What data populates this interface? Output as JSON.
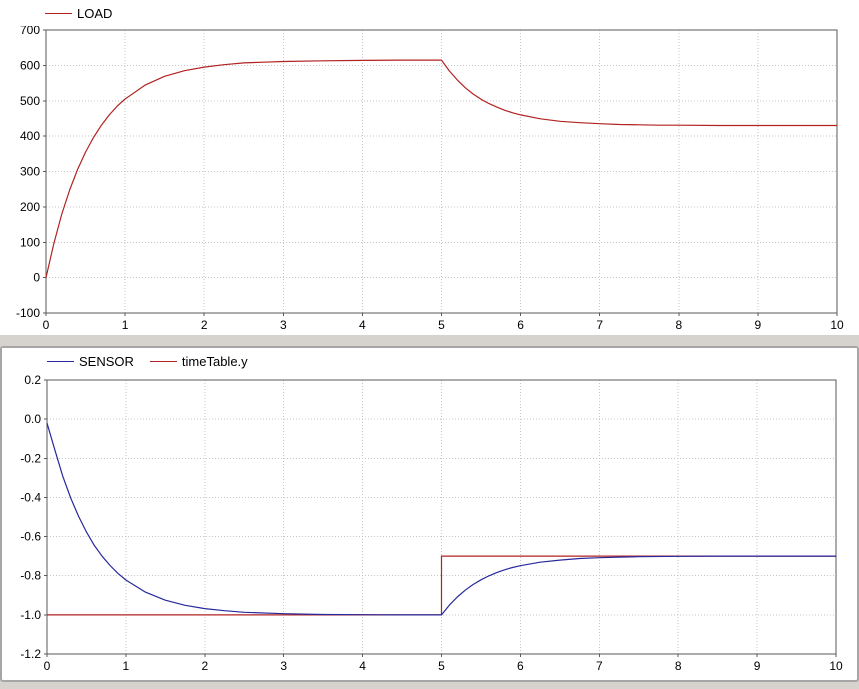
{
  "chart_data": [
    {
      "type": "line",
      "title": "",
      "xlabel": "",
      "ylabel": "",
      "xlim": [
        0,
        10
      ],
      "ylim": [
        -100,
        700
      ],
      "xticks": [
        "0",
        "1",
        "2",
        "3",
        "4",
        "5",
        "6",
        "7",
        "8",
        "9",
        "10"
      ],
      "yticks": [
        "-100",
        "0",
        "100",
        "200",
        "300",
        "400",
        "500",
        "600",
        "700"
      ],
      "grid": "dotted",
      "legend_position": "top-left",
      "legend": [
        {
          "label": "LOAD",
          "color": "#b22222"
        }
      ],
      "series": [
        {
          "name": "LOAD",
          "color": "#b22222",
          "points": [
            [
              0,
              0
            ],
            [
              0.1,
              97
            ],
            [
              0.2,
              180
            ],
            [
              0.3,
              248
            ],
            [
              0.4,
              306
            ],
            [
              0.5,
              355
            ],
            [
              0.6,
              396
            ],
            [
              0.7,
              431
            ],
            [
              0.8,
              460
            ],
            [
              0.9,
              485
            ],
            [
              1,
              505
            ],
            [
              1.25,
              544
            ],
            [
              1.5,
              569
            ],
            [
              1.75,
              585
            ],
            [
              2,
              595
            ],
            [
              2.25,
              602
            ],
            [
              2.5,
              607
            ],
            [
              2.75,
              609
            ],
            [
              3,
              611
            ],
            [
              3.5,
              613
            ],
            [
              4,
              614
            ],
            [
              4.5,
              615
            ],
            [
              5,
              615
            ],
            [
              5.1,
              584
            ],
            [
              5.2,
              559
            ],
            [
              5.3,
              537
            ],
            [
              5.4,
              519
            ],
            [
              5.5,
              504
            ],
            [
              5.6,
              492
            ],
            [
              5.7,
              482
            ],
            [
              5.8,
              473
            ],
            [
              5.9,
              466
            ],
            [
              6,
              460
            ],
            [
              6.25,
              449
            ],
            [
              6.5,
              442
            ],
            [
              6.75,
              438
            ],
            [
              7,
              435
            ],
            [
              7.25,
              433
            ],
            [
              7.5,
              432
            ],
            [
              7.75,
              431
            ],
            [
              8,
              431
            ],
            [
              8.5,
              430
            ],
            [
              9,
              430
            ],
            [
              9.5,
              430
            ],
            [
              10,
              430
            ]
          ]
        }
      ]
    },
    {
      "type": "line",
      "title": "",
      "xlabel": "",
      "ylabel": "",
      "xlim": [
        0,
        10
      ],
      "ylim": [
        -1.2,
        0.2
      ],
      "xticks": [
        "0",
        "1",
        "2",
        "3",
        "4",
        "5",
        "6",
        "7",
        "8",
        "9",
        "10"
      ],
      "yticks": [
        "-1.2",
        "-1.0",
        "-0.8",
        "-0.6",
        "-0.4",
        "-0.2",
        "0.0",
        "0.2"
      ],
      "grid": "dotted",
      "legend_position": "top-left",
      "legend": [
        {
          "label": "SENSOR",
          "color": "#28289c"
        },
        {
          "label": "timeTable.y",
          "color": "#b22222"
        }
      ],
      "series": [
        {
          "name": "timeTable.y",
          "color": "#b22222",
          "points": [
            [
              0,
              -1
            ],
            [
              5,
              -1
            ],
            [
              5,
              -0.7
            ],
            [
              10,
              -0.7
            ]
          ]
        },
        {
          "name": "SENSOR",
          "color": "#28289c",
          "points": [
            [
              0,
              -0.02
            ],
            [
              0.1,
              -0.158
            ],
            [
              0.2,
              -0.292
            ],
            [
              0.3,
              -0.403
            ],
            [
              0.4,
              -0.497
            ],
            [
              0.5,
              -0.577
            ],
            [
              0.6,
              -0.645
            ],
            [
              0.7,
              -0.701
            ],
            [
              0.8,
              -0.748
            ],
            [
              0.9,
              -0.788
            ],
            [
              1,
              -0.822
            ],
            [
              1.25,
              -0.884
            ],
            [
              1.5,
              -0.925
            ],
            [
              1.75,
              -0.951
            ],
            [
              2,
              -0.968
            ],
            [
              2.25,
              -0.979
            ],
            [
              2.5,
              -0.987
            ],
            [
              3,
              -0.994
            ],
            [
              3.5,
              -0.998
            ],
            [
              4,
              -0.999
            ],
            [
              4.5,
              -1.0
            ],
            [
              5,
              -1.0
            ],
            [
              5.1,
              -0.95
            ],
            [
              5.2,
              -0.909
            ],
            [
              5.3,
              -0.874
            ],
            [
              5.4,
              -0.845
            ],
            [
              5.5,
              -0.821
            ],
            [
              5.6,
              -0.801
            ],
            [
              5.7,
              -0.784
            ],
            [
              5.8,
              -0.77
            ],
            [
              5.9,
              -0.758
            ],
            [
              6,
              -0.749
            ],
            [
              6.25,
              -0.731
            ],
            [
              6.5,
              -0.72
            ],
            [
              6.75,
              -0.712
            ],
            [
              7,
              -0.708
            ],
            [
              7.25,
              -0.705
            ],
            [
              7.5,
              -0.703
            ],
            [
              8,
              -0.701
            ],
            [
              8.5,
              -0.7
            ],
            [
              9,
              -0.7
            ],
            [
              9.5,
              -0.7
            ],
            [
              10,
              -0.7
            ]
          ]
        }
      ]
    }
  ]
}
